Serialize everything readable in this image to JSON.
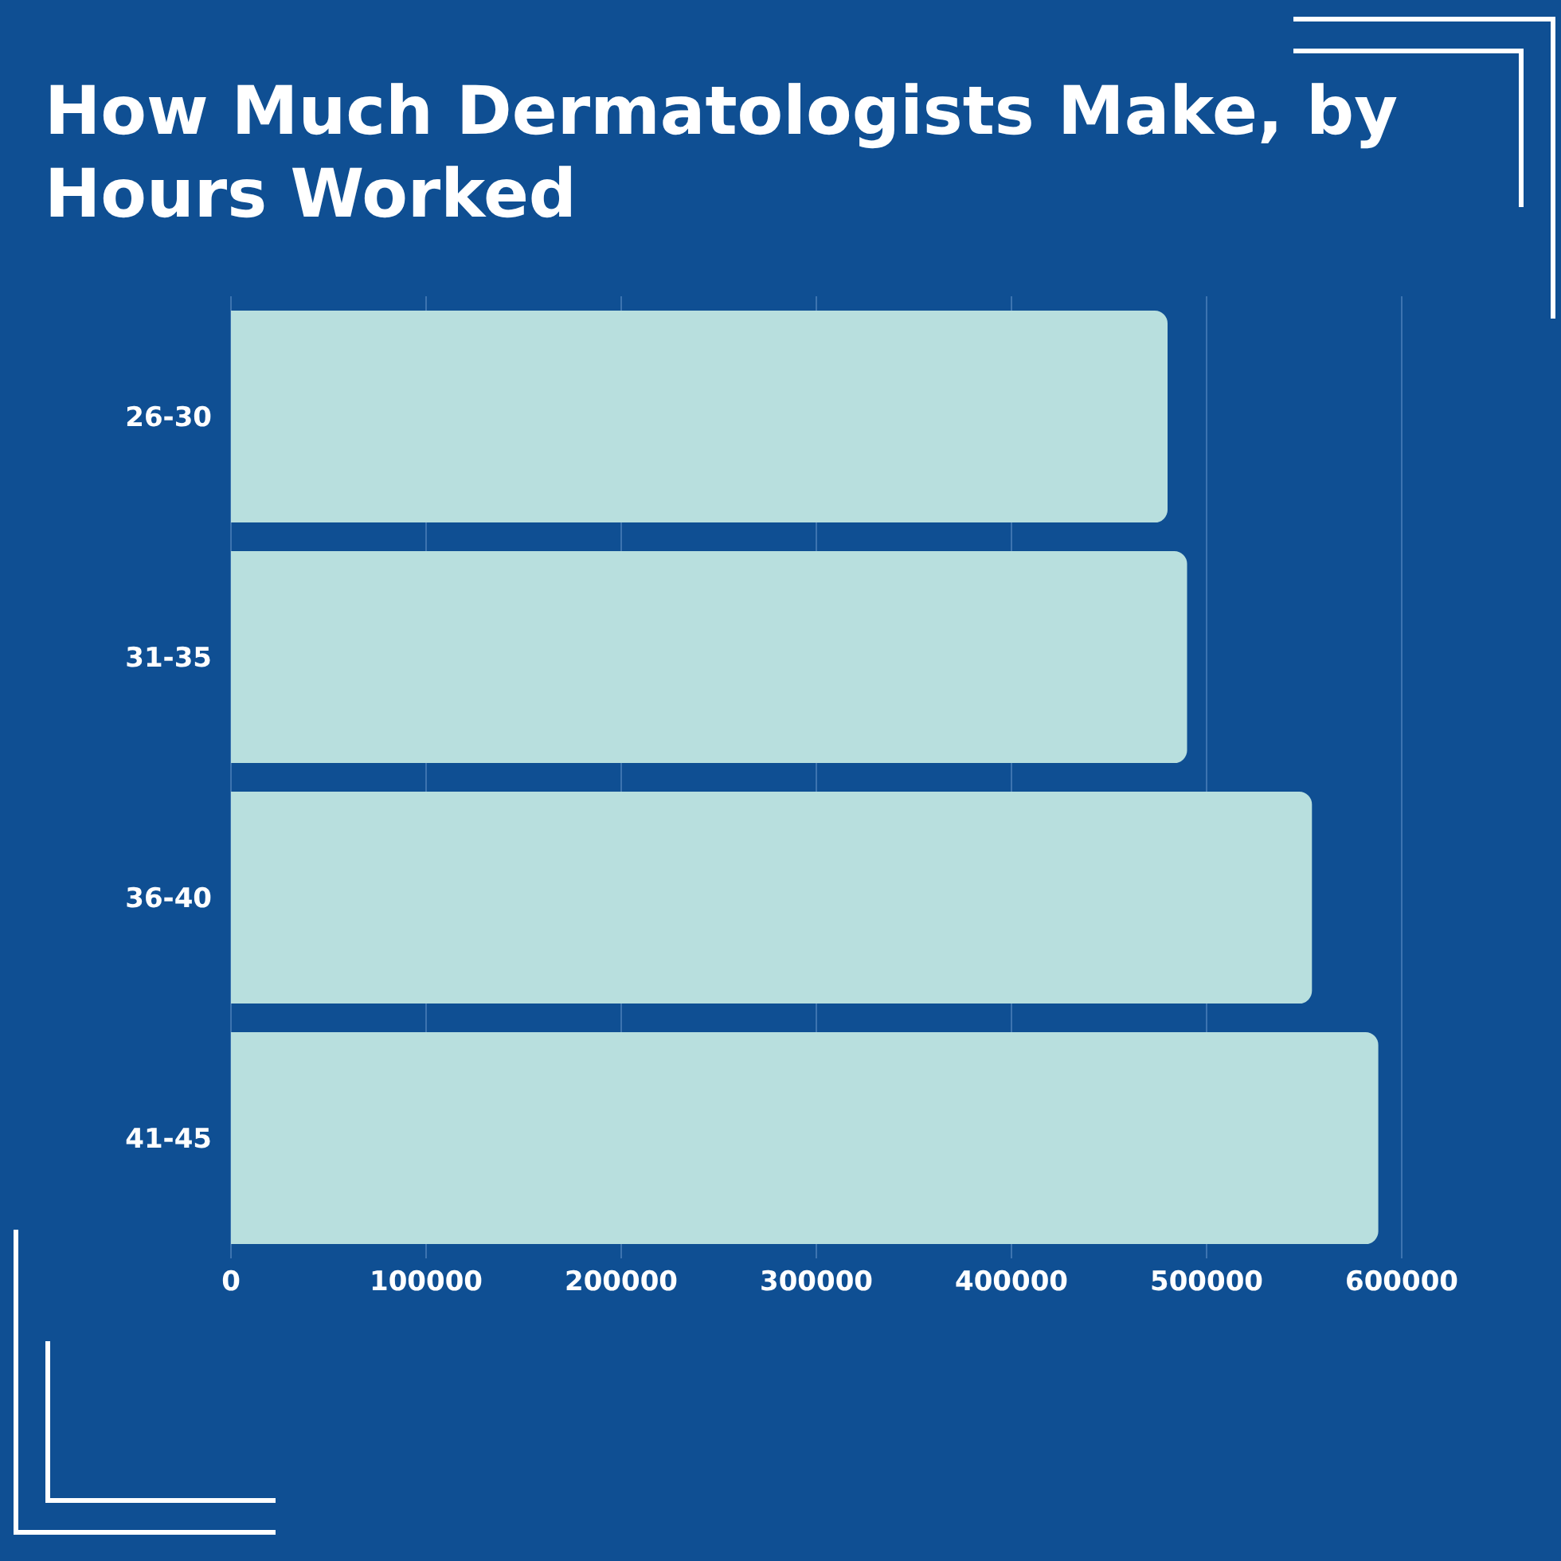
{
  "chart_data": {
    "type": "bar",
    "orientation": "horizontal",
    "title": "How Much Dermatologists Make, by Hours Worked",
    "categories": [
      "26-30",
      "31-35",
      "36-40",
      "41-45"
    ],
    "values": [
      480000,
      490000,
      554000,
      588000
    ],
    "color": "#b8dfde",
    "xlim": [
      0,
      600000
    ],
    "xticks": [
      0,
      100000,
      200000,
      300000,
      400000,
      500000,
      600000
    ],
    "grid": "x"
  }
}
